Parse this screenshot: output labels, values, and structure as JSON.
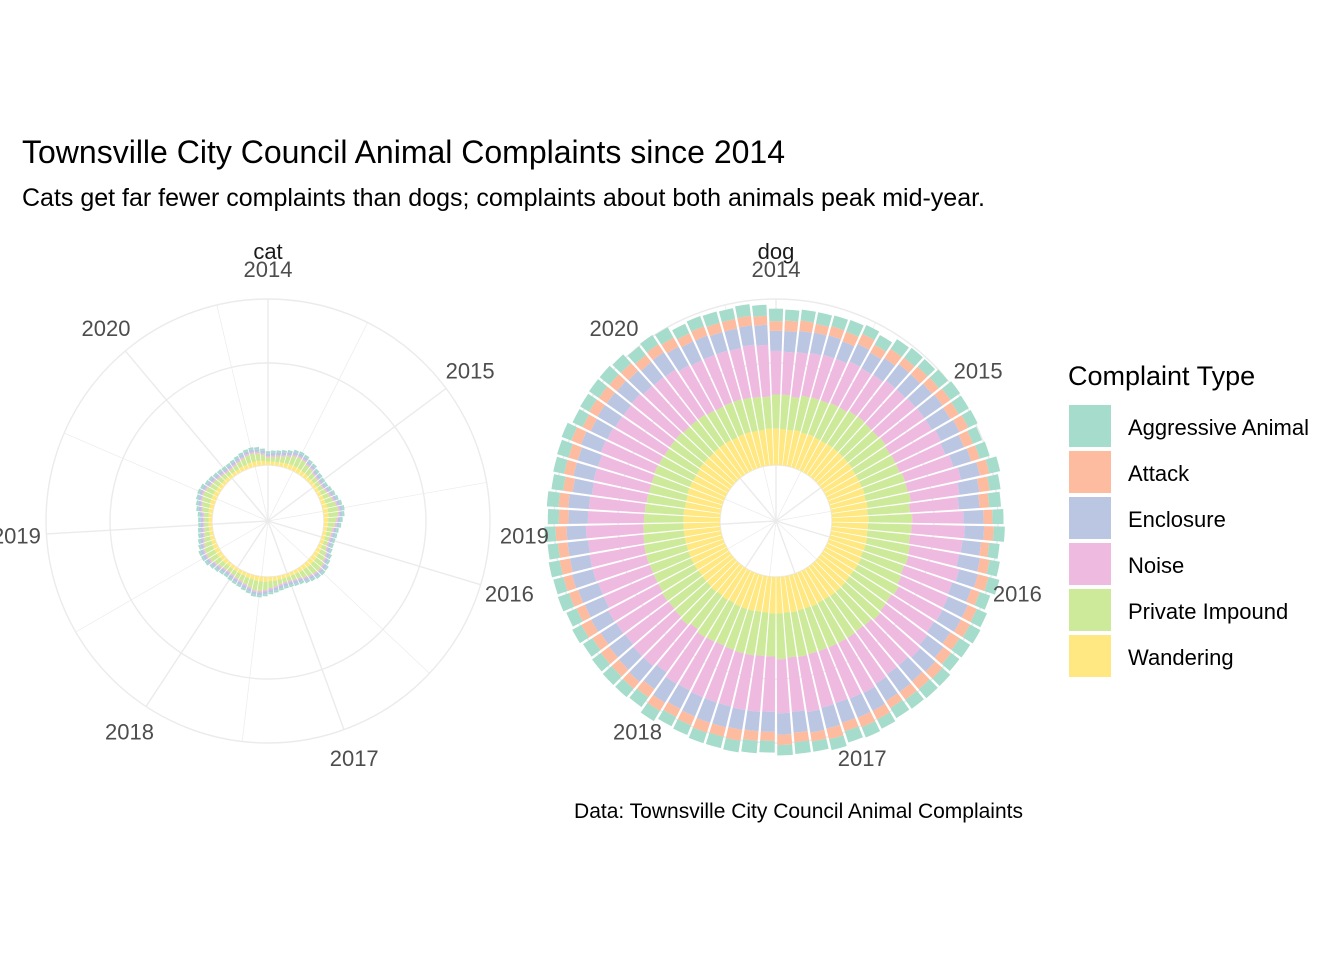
{
  "chart_data": {
    "type": "bar",
    "coord": "polar",
    "title": "Townsville City Council Animal Complaints since 2014",
    "subtitle": "Cats get far fewer complaints than dogs; complaints about both animals peak mid-year.",
    "caption": "Data: Townsville City Council Animal Complaints",
    "legend": {
      "title": "Complaint Type",
      "placement": "right",
      "entries": [
        "Aggressive Animal",
        "Attack",
        "Enclosure",
        "Noise",
        "Private Impound",
        "Wandering"
      ]
    },
    "colors": {
      "Aggressive Animal": "#a6dccb",
      "Attack": "#fdbb9f",
      "Enclosure": "#bbc6e3",
      "Noise": "#efbadf",
      "Private Impound": "#cde99a",
      "Wandering": "#ffe781",
      "grid": "#ebebeb"
    },
    "year_ticks": [
      "2014",
      "2015",
      "2016",
      "2017",
      "2018",
      "2019",
      "2020"
    ],
    "panels": [
      {
        "name": "cat",
        "months": 81,
        "series": [
          {
            "name": "Aggressive Animal",
            "values": [
              3,
              3,
              3,
              3,
              3,
              3,
              3,
              3,
              3,
              3,
              3,
              3,
              3,
              3,
              3,
              3,
              3,
              3,
              3,
              3,
              3,
              3,
              3,
              3,
              3,
              3,
              3,
              3,
              3,
              3,
              3,
              3,
              3,
              3,
              3,
              3,
              3,
              3,
              3,
              3,
              3,
              3,
              3,
              3,
              3,
              3,
              3,
              3,
              3,
              3,
              3,
              3,
              3,
              3,
              3,
              3,
              3,
              3,
              3,
              3,
              3,
              3,
              3,
              3,
              3,
              3,
              3,
              3,
              3,
              3,
              3,
              3,
              3,
              3,
              3,
              3,
              3,
              3,
              3,
              3,
              3
            ]
          },
          {
            "name": "Attack",
            "values": [
              0,
              0,
              0,
              0,
              0,
              0,
              0,
              0,
              0,
              0,
              0,
              0,
              0,
              0,
              0,
              0,
              0,
              0,
              0,
              0,
              0,
              0,
              0,
              0,
              0,
              0,
              0,
              0,
              0,
              0,
              0,
              0,
              0,
              0,
              0,
              0,
              0,
              0,
              0,
              0,
              0,
              0,
              0,
              0,
              0,
              0,
              0,
              0,
              0,
              0,
              0,
              0,
              0,
              0,
              0,
              0,
              0,
              0,
              0,
              0,
              0,
              0,
              0,
              0,
              0,
              0,
              0,
              0,
              0,
              0,
              0,
              0,
              0,
              0,
              0,
              0,
              0,
              0,
              0,
              0,
              0
            ]
          },
          {
            "name": "Enclosure",
            "values": [
              4,
              4,
              4,
              4,
              4,
              4,
              4,
              4,
              4,
              4,
              4,
              4,
              4,
              4,
              4,
              4,
              4,
              4,
              4,
              4,
              4,
              4,
              4,
              4,
              4,
              4,
              4,
              4,
              4,
              4,
              4,
              4,
              4,
              4,
              4,
              4,
              4,
              4,
              4,
              4,
              4,
              4,
              4,
              4,
              4,
              4,
              4,
              4,
              4,
              4,
              4,
              4,
              4,
              4,
              4,
              4,
              4,
              4,
              4,
              4,
              4,
              4,
              4,
              4,
              4,
              4,
              4,
              4,
              4,
              4,
              4,
              4,
              4,
              4,
              4,
              4,
              4,
              4,
              4,
              4,
              4
            ]
          },
          {
            "name": "Noise",
            "values": [
              2,
              2,
              2,
              2,
              2,
              2,
              2,
              2,
              2,
              2,
              2,
              2,
              2,
              2,
              2,
              2,
              2,
              2,
              2,
              2,
              2,
              2,
              2,
              2,
              2,
              2,
              2,
              2,
              2,
              2,
              2,
              2,
              2,
              2,
              2,
              2,
              2,
              2,
              2,
              2,
              2,
              2,
              2,
              2,
              2,
              2,
              2,
              2,
              2,
              2,
              2,
              2,
              2,
              2,
              2,
              2,
              2,
              2,
              2,
              2,
              2,
              2,
              2,
              2,
              2,
              2,
              2,
              2,
              2,
              2,
              2,
              2,
              2,
              2,
              2,
              2,
              2,
              2,
              2,
              2,
              2
            ]
          },
          {
            "name": "Private Impound",
            "values": [
              6,
              7,
              8,
              9,
              11,
              13,
              14,
              13,
              11,
              10,
              8,
              7,
              6,
              6,
              8,
              9,
              11,
              13,
              15,
              14,
              12,
              10,
              8,
              7,
              6,
              6,
              7,
              9,
              11,
              13,
              14,
              13,
              12,
              10,
              8,
              7,
              6,
              6,
              7,
              8,
              10,
              12,
              14,
              14,
              12,
              10,
              9,
              8,
              7,
              6,
              7,
              8,
              10,
              12,
              13,
              13,
              11,
              9,
              8,
              7,
              6,
              6,
              7,
              9,
              11,
              12,
              13,
              12,
              10,
              9,
              8,
              7,
              6,
              6,
              7,
              8,
              10,
              11,
              12,
              11,
              9
            ]
          },
          {
            "name": "Wandering",
            "values": [
              5,
              5,
              5,
              6,
              6,
              7,
              7,
              7,
              6,
              6,
              5,
              5,
              5,
              5,
              5,
              6,
              6,
              7,
              7,
              7,
              6,
              6,
              5,
              5,
              5,
              5,
              5,
              6,
              6,
              7,
              7,
              7,
              6,
              6,
              5,
              5,
              5,
              5,
              5,
              6,
              6,
              7,
              7,
              7,
              6,
              6,
              5,
              5,
              5,
              5,
              5,
              6,
              6,
              7,
              7,
              7,
              6,
              6,
              5,
              5,
              5,
              5,
              5,
              6,
              6,
              7,
              7,
              7,
              6,
              6,
              5,
              5,
              5,
              5,
              5,
              6,
              6,
              7,
              7,
              7,
              6
            ]
          }
        ]
      },
      {
        "name": "dog",
        "months": 81,
        "series": [
          {
            "name": "Aggressive Animal",
            "values": [
              18,
              16,
              16,
              17,
              16,
              18,
              14,
              16,
              17,
              18,
              15,
              17,
              17,
              17,
              15,
              14,
              15,
              16,
              16,
              17,
              16,
              16,
              15,
              15,
              16,
              16,
              16,
              17,
              18,
              15,
              15,
              17,
              16,
              17,
              15,
              16,
              17,
              16,
              15,
              17,
              15,
              17,
              18,
              17,
              17,
              16,
              15,
              15,
              17,
              17,
              16,
              17,
              16,
              16,
              15,
              16,
              17,
              15,
              16,
              15,
              16,
              16,
              17,
              17,
              16,
              17,
              15,
              16,
              15,
              17,
              18,
              17,
              16,
              16,
              17,
              15,
              16,
              17,
              16,
              17,
              16
            ]
          },
          {
            "name": "Attack",
            "values": [
              14,
              15,
              15,
              13,
              14,
              15,
              16,
              13,
              16,
              12,
              15,
              13,
              14,
              14,
              14,
              14,
              13,
              14,
              15,
              14,
              13,
              14,
              12,
              14,
              16,
              13,
              14,
              15,
              16,
              14,
              14,
              15,
              14,
              12,
              14,
              15,
              13,
              16,
              13,
              14,
              15,
              13,
              14,
              16,
              14,
              15,
              14,
              13,
              14,
              15,
              13,
              14,
              15,
              14,
              16,
              13,
              14,
              13,
              15,
              14,
              16,
              14,
              14,
              14,
              14,
              14,
              15,
              13,
              14,
              14,
              14,
              15,
              13,
              14,
              15,
              13,
              14,
              14,
              14,
              14,
              13
            ]
          },
          {
            "name": "Enclosure",
            "values": [
              29,
              30,
              31,
              30,
              29,
              27,
              28,
              26,
              29,
              30,
              30,
              31,
              32,
              31,
              30,
              29,
              27,
              28,
              29,
              30,
              29,
              28,
              27,
              31,
              28,
              29,
              31,
              30,
              28,
              29,
              29,
              30,
              31,
              29,
              29,
              30,
              30,
              31,
              30,
              30,
              31,
              29,
              28,
              29,
              31,
              31,
              30,
              30,
              32,
              30,
              30,
              28,
              29,
              27,
              28,
              30,
              31,
              31,
              29,
              30,
              28,
              28,
              30,
              28,
              30,
              31,
              31,
              27,
              30,
              30,
              28,
              30,
              28,
              30,
              31,
              30,
              30,
              28,
              29,
              28,
              29
            ]
          },
          {
            "name": "Noise",
            "values": [
              63,
              62,
              65,
              63,
              64,
              64,
              66,
              65,
              63,
              66,
              67,
              69,
              68,
              70,
              73,
              71,
              73,
              79,
              71,
              71,
              74,
              77,
              76,
              72,
              76,
              74,
              74,
              72,
              73,
              75,
              77,
              76,
              77,
              78,
              81,
              80,
              79,
              80,
              81,
              79,
              78,
              80,
              81,
              80,
              79,
              80,
              81,
              79,
              79,
              77,
              78,
              80,
              79,
              79,
              82,
              79,
              79,
              80,
              80,
              80,
              83,
              81,
              81,
              80,
              82,
              81,
              83,
              83,
              82,
              81,
              82,
              80,
              79,
              78,
              75,
              74,
              73,
              73,
              73,
              76,
              75
            ]
          },
          {
            "name": "Private Impound",
            "values": [
              49,
              50,
              48,
              51,
              53,
              52,
              55,
              55,
              57,
              58,
              57,
              57,
              59,
              58,
              59,
              59,
              61,
              62,
              63,
              61,
              63,
              63,
              62,
              63,
              64,
              63,
              64,
              67,
              65,
              66,
              67,
              64,
              63,
              65,
              65,
              64,
              65,
              65,
              65,
              65,
              66,
              62,
              63,
              64,
              63,
              62,
              61,
              63,
              63,
              60,
              63,
              62,
              61,
              62,
              59,
              59,
              59,
              60,
              60,
              59,
              58,
              57,
              56,
              56,
              55,
              54,
              55,
              55,
              54,
              53,
              53,
              52,
              51,
              51,
              49,
              49,
              49,
              49,
              49,
              48,
              46
            ]
          },
          {
            "name": "Wandering",
            "values": [
              53,
              52,
              52,
              53,
              52,
              53,
              52,
              52,
              53,
              53,
              53,
              53,
              53,
              52,
              52,
              52,
              53,
              52,
              53,
              52,
              53,
              52,
              52,
              53,
              53,
              52,
              53,
              53,
              52,
              52,
              53,
              53,
              53,
              52,
              52,
              53,
              52,
              52,
              53,
              52,
              53,
              53,
              52,
              52,
              53,
              53,
              53,
              52,
              53,
              52,
              53,
              52,
              52,
              52,
              53,
              53,
              53,
              53,
              53,
              53,
              53,
              53,
              53,
              52,
              52,
              53,
              53,
              52,
              52,
              53,
              53,
              52,
              53,
              53,
              53,
              52,
              53,
              53,
              52,
              52,
              53
            ]
          }
        ]
      }
    ]
  }
}
